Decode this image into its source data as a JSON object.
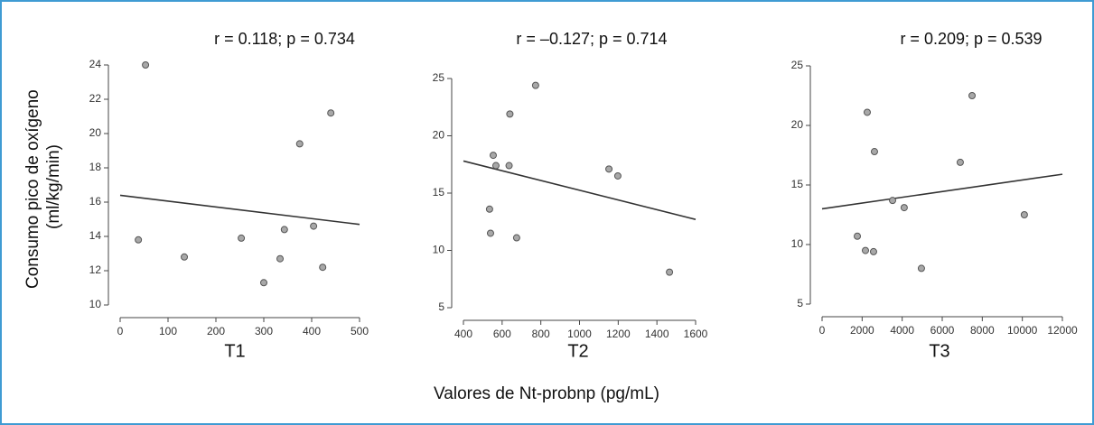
{
  "chart_data": [
    {
      "type": "scatter",
      "title": "r = 0.118; p = 0.734",
      "subtitle": "T1",
      "ylabel": [
        "Consumo pico de oxígeno",
        "(ml/kg/min)"
      ],
      "x": [
        53,
        38,
        134,
        253,
        300,
        334,
        343,
        375,
        404,
        423,
        440
      ],
      "y": [
        24.0,
        13.8,
        12.8,
        13.9,
        11.3,
        12.7,
        14.4,
        19.4,
        14.6,
        12.2,
        21.2
      ],
      "trendline": {
        "x": [
          0,
          500
        ],
        "y": [
          16.4,
          14.7
        ]
      },
      "xlim": [
        0,
        500
      ],
      "xticks": [
        0,
        100,
        200,
        300,
        400,
        500
      ],
      "ylim": [
        10,
        24
      ],
      "yticks": [
        10,
        12,
        14,
        16,
        18,
        20,
        22,
        24
      ]
    },
    {
      "type": "scatter",
      "title": "r = –0.127; p = 0.714",
      "subtitle": "T2",
      "xlabel": "Valores de Nt-probnp (pg/mL)",
      "x": [
        554,
        568,
        535,
        540,
        640,
        636,
        773,
        675,
        1152,
        1198,
        1465
      ],
      "y": [
        18.3,
        17.4,
        13.6,
        11.5,
        21.9,
        17.4,
        24.4,
        11.1,
        17.1,
        16.5,
        8.1
      ],
      "trendline": {
        "x": [
          400,
          1600
        ],
        "y": [
          17.8,
          12.7
        ]
      },
      "xlim": [
        400,
        1600
      ],
      "xticks": [
        400,
        600,
        800,
        1000,
        1200,
        1400,
        1600
      ],
      "ylim": [
        5,
        25
      ],
      "yticks": [
        5,
        10,
        15,
        20,
        25
      ]
    },
    {
      "type": "scatter",
      "title": "r = 0.209; p = 0.539",
      "subtitle": "T3",
      "x": [
        1760,
        2165,
        2255,
        2570,
        2615,
        3520,
        4100,
        4960,
        7490,
        6900,
        10100
      ],
      "y": [
        10.7,
        9.5,
        21.1,
        9.4,
        17.8,
        13.7,
        13.1,
        8.0,
        22.5,
        16.9,
        12.5
      ],
      "trendline": {
        "x": [
          0,
          12000
        ],
        "y": [
          13.0,
          15.9
        ]
      },
      "xlim": [
        0,
        12000
      ],
      "xticks": [
        0,
        2000,
        4000,
        6000,
        8000,
        10000,
        12000
      ],
      "ylim": [
        5,
        25
      ],
      "yticks": [
        5,
        10,
        15,
        20,
        25
      ]
    }
  ]
}
